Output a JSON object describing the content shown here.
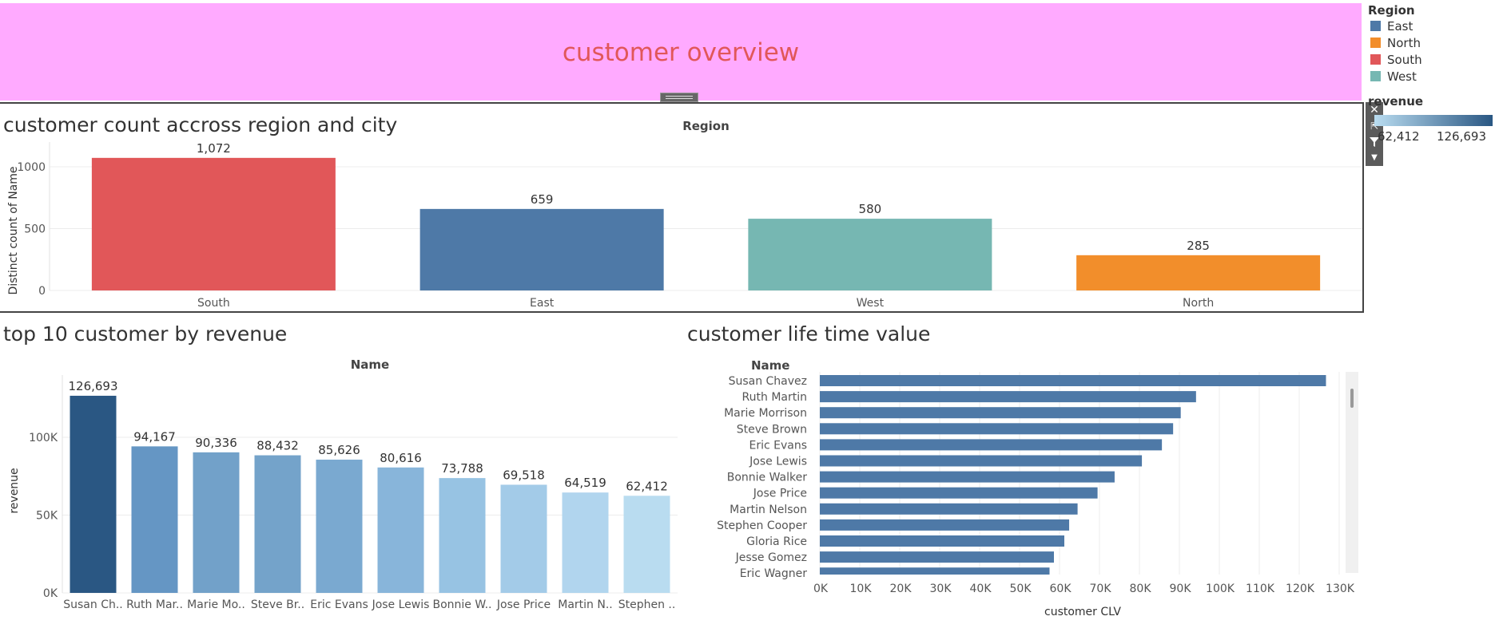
{
  "header": {
    "title": "customer overview"
  },
  "toolbar": {
    "close_icon": "close-icon",
    "popout_icon": "popout-icon",
    "filter_icon": "filter-icon",
    "menu_icon": "dropdown-arrow-icon"
  },
  "legend": {
    "region_title": "Region",
    "items": [
      {
        "label": "East",
        "color": "#4e79a7"
      },
      {
        "label": "North",
        "color": "#f28e2b"
      },
      {
        "label": "South",
        "color": "#e15759"
      },
      {
        "label": "West",
        "color": "#76b7b2"
      }
    ],
    "revenue_title": "revenue",
    "revenue_min": "62,412",
    "revenue_max": "126,693",
    "revenue_color_low": "#b9dcf0",
    "revenue_color_high": "#2a5783"
  },
  "chart_data": [
    {
      "id": "region-chart",
      "type": "bar",
      "title": "customer count accross region and city",
      "column_header": "Region",
      "categories": [
        "South",
        "East",
        "West",
        "North"
      ],
      "values": [
        1072,
        659,
        580,
        285
      ],
      "value_labels": [
        "1,072",
        "659",
        "580",
        "285"
      ],
      "colors": [
        "#e15759",
        "#4e79a7",
        "#76b7b2",
        "#f28e2b"
      ],
      "ylabel": "Distinct count of Name",
      "yticks": [
        0,
        500,
        1000
      ],
      "ytick_labels": [
        "0",
        "500",
        "1000"
      ],
      "ylim": [
        0,
        1200
      ],
      "grid": true
    },
    {
      "id": "top10-chart",
      "type": "bar",
      "title": "top 10 customer by revenue",
      "column_header": "Name",
      "categories": [
        "Susan Ch..",
        "Ruth Mar..",
        "Marie Mo..",
        "Steve Br..",
        "Eric Evans",
        "Jose Lewis",
        "Bonnie W..",
        "Jose Price",
        "Martin N..",
        "Stephen .."
      ],
      "values": [
        126693,
        94167,
        90336,
        88432,
        85626,
        80616,
        73788,
        69518,
        64519,
        62412
      ],
      "value_labels": [
        "126,693",
        "94,167",
        "90,336",
        "88,432",
        "85,626",
        "80,616",
        "73,788",
        "69,518",
        "64,519",
        "62,412"
      ],
      "colors": [
        "#2a5783",
        "#6596c4",
        "#72a1c9",
        "#74a3ca",
        "#7aa9d0",
        "#88b5da",
        "#97c3e3",
        "#a3cbe8",
        "#b1d5ee",
        "#b9dcf0"
      ],
      "ylabel": "revenue",
      "yticks": [
        0,
        50000,
        100000
      ],
      "ytick_labels": [
        "0K",
        "50K",
        "100K"
      ],
      "ylim": [
        0,
        140000
      ],
      "grid": true
    },
    {
      "id": "clv-chart",
      "type": "bar",
      "orientation": "horizontal",
      "title": "customer life time value",
      "row_header": "Name",
      "categories": [
        "Susan Chavez",
        "Ruth Martin",
        "Marie Morrison",
        "Steve Brown",
        "Eric Evans",
        "Jose Lewis",
        "Bonnie Walker",
        "Jose Price",
        "Martin Nelson",
        "Stephen Cooper",
        "Gloria Rice",
        "Jesse Gomez",
        "Eric Wagner"
      ],
      "values": [
        126693,
        94167,
        90336,
        88432,
        85626,
        80616,
        73788,
        69518,
        64519,
        62412,
        61200,
        58600,
        57500
      ],
      "color": "#4e79a7",
      "xlabel": "customer CLV",
      "xticks": [
        0,
        10000,
        20000,
        30000,
        40000,
        50000,
        60000,
        70000,
        80000,
        90000,
        100000,
        110000,
        120000,
        130000
      ],
      "xtick_labels": [
        "0K",
        "10K",
        "20K",
        "30K",
        "40K",
        "50K",
        "60K",
        "70K",
        "80K",
        "90K",
        "100K",
        "110K",
        "120K",
        "130K"
      ],
      "xlim": [
        0,
        132000
      ],
      "grid": true
    }
  ]
}
